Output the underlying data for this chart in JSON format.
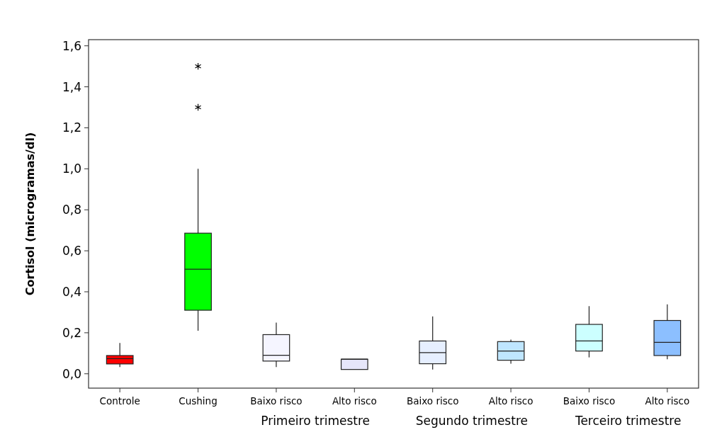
{
  "chart_data": {
    "type": "box",
    "ylabel": "Cortisol (microgramas/dl)",
    "categories": [
      "Controle",
      "Cushing",
      "Baixo risco",
      "Alto risco",
      "Baixo risco",
      "Alto risco",
      "Baixo risco",
      "Alto risco"
    ],
    "colors": [
      "#ff0000",
      "#00ff00",
      "#f5f5ff",
      "#e6e6fa",
      "#e6efff",
      "#bfe6ff",
      "#ccffff",
      "#8cbfff"
    ],
    "boxes": [
      {
        "low": 0.033,
        "q1": 0.048,
        "median": 0.074,
        "q3": 0.089,
        "high": 0.15
      },
      {
        "low": 0.21,
        "q1": 0.31,
        "median": 0.51,
        "q3": 0.686,
        "high": 1.0,
        "outliers": [
          1.3,
          1.5
        ]
      },
      {
        "low": 0.033,
        "q1": 0.062,
        "median": 0.09,
        "q3": 0.191,
        "high": 0.25
      },
      {
        "low": 0.021,
        "q1": 0.021,
        "median": 0.071,
        "q3": 0.071,
        "high": 0.071
      },
      {
        "low": 0.021,
        "q1": 0.049,
        "median": 0.103,
        "q3": 0.16,
        "high": 0.28
      },
      {
        "low": 0.049,
        "q1": 0.066,
        "median": 0.111,
        "q3": 0.157,
        "high": 0.167
      },
      {
        "low": 0.08,
        "q1": 0.111,
        "median": 0.16,
        "q3": 0.241,
        "high": 0.33
      },
      {
        "low": 0.071,
        "q1": 0.089,
        "median": 0.153,
        "q3": 0.26,
        "high": 0.339
      }
    ],
    "annotations": [
      "Primeiro trimestre",
      "Segundo trimestre",
      "Terceiro trimestre"
    ],
    "ylim": [
      -0.07,
      1.63
    ],
    "yticks": [
      {
        "value": 0,
        "label": "0,0"
      },
      {
        "value": 0.2,
        "label": "0,2"
      },
      {
        "value": 0.4,
        "label": "0,4"
      },
      {
        "value": 0.6,
        "label": "0,6"
      },
      {
        "value": 0.8,
        "label": "0,8"
      },
      {
        "value": 1.0,
        "label": "1,0"
      },
      {
        "value": 1.2,
        "label": "1,2"
      },
      {
        "value": 1.4,
        "label": "1,4"
      },
      {
        "value": 1.6,
        "label": "1,6"
      }
    ]
  }
}
